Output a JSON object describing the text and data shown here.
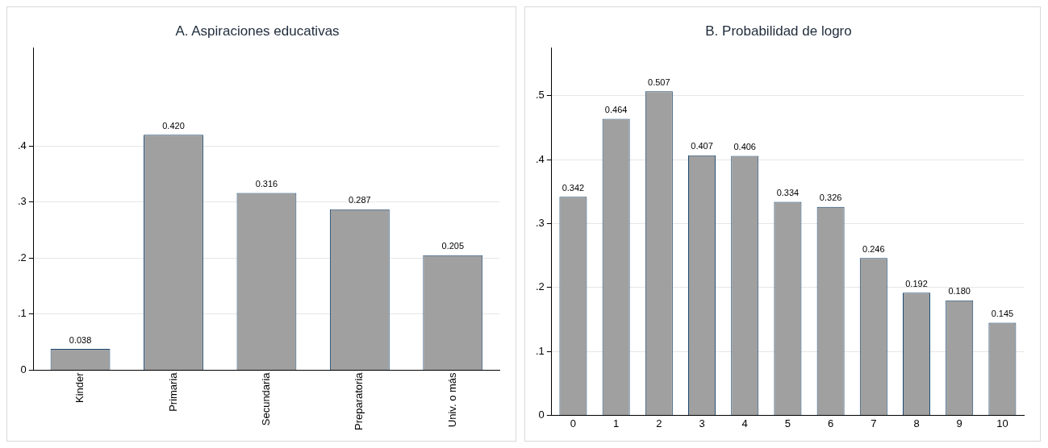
{
  "chart_data": [
    {
      "type": "bar",
      "title": "A. Aspiraciones educativas",
      "categories": [
        "Kinder",
        "Primaria",
        "Secundaria",
        "Preparatoria",
        "Univ. o más"
      ],
      "values": [
        0.038,
        0.42,
        0.316,
        0.287,
        0.205
      ],
      "value_labels": [
        "0.038",
        "0.420",
        "0.316",
        "0.287",
        "0.205"
      ],
      "color": "#a0a0a0",
      "ylim": [
        0,
        0.575
      ],
      "yticks": [
        0,
        {
          "value": 0.1,
          "label": ".1"
        },
        {
          "value": 0.2,
          "label": ".2"
        },
        {
          "value": 0.3,
          "label": ".3"
        },
        {
          "value": 0.4,
          "label": ".4"
        }
      ],
      "grid": "y",
      "legend": false
    },
    {
      "type": "bar",
      "title": "B. Probabilidad de logro",
      "categories": [
        "0",
        "1",
        "2",
        "3",
        "4",
        "5",
        "6",
        "7",
        "8",
        "9",
        "10"
      ],
      "values": [
        0.342,
        0.464,
        0.507,
        0.407,
        0.406,
        0.334,
        0.326,
        0.246,
        0.192,
        0.18,
        0.145
      ],
      "value_labels": [
        "0.342",
        "0.464",
        "0.507",
        "0.407",
        "0.406",
        "0.334",
        "0.326",
        "0.246",
        "0.192",
        "0.180",
        "0.145"
      ],
      "color": "#a0a0a0",
      "ylim": [
        0,
        0.575
      ],
      "yticks": [
        0,
        {
          "value": 0.1,
          "label": ".1"
        },
        {
          "value": 0.2,
          "label": ".2"
        },
        {
          "value": 0.3,
          "label": ".3"
        },
        {
          "value": 0.4,
          "label": ".4"
        },
        {
          "value": 0.5,
          "label": ".5"
        }
      ],
      "grid": "y",
      "legend": false
    }
  ]
}
